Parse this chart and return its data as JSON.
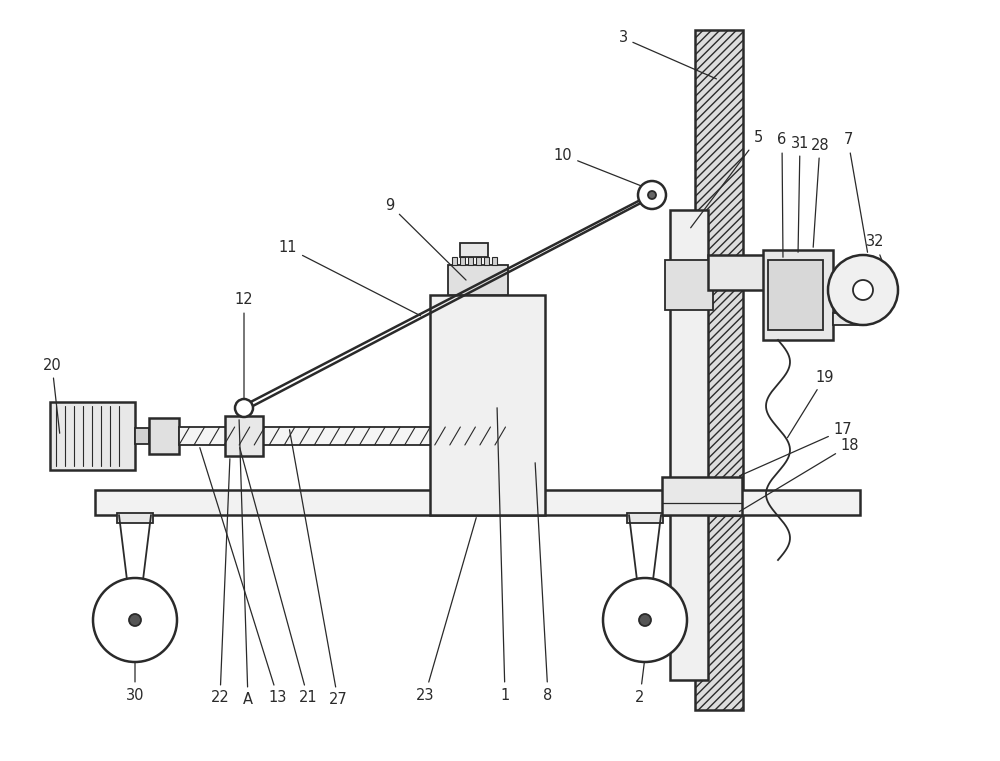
{
  "bg_color": "#ffffff",
  "line_color": "#2a2a2a",
  "figsize": [
    10.0,
    7.61
  ],
  "dpi": 100,
  "lw": 1.3,
  "lw_thick": 1.8
}
